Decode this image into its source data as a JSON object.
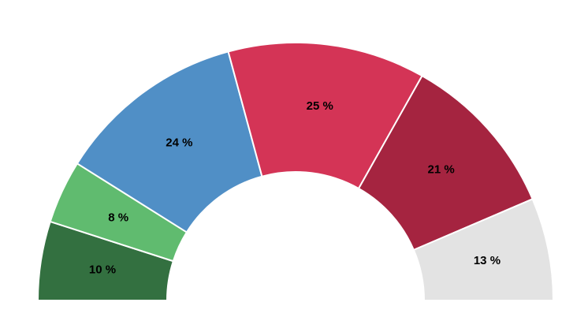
{
  "chart_data": {
    "type": "semi-donut",
    "values": [
      10,
      8,
      24,
      25,
      21,
      13
    ],
    "value_labels": [
      "10 %",
      "8 %",
      "24 %",
      "25 %",
      "21 %",
      "13 %"
    ],
    "colors": [
      "#337040",
      "#60bb6f",
      "#508fc6",
      "#d43456",
      "#a52440",
      "#e3e3e3"
    ]
  }
}
